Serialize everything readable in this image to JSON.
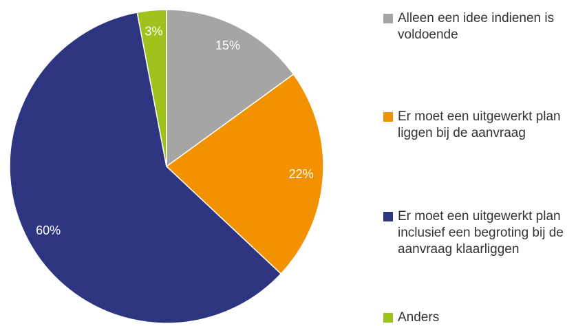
{
  "chart_data": {
    "type": "pie",
    "categories": [
      "Alleen een idee indienen is voldoende",
      "Er moet een uitgewerkt plan liggen bij de aanvraag",
      "Er moet een uitgewerkt plan inclusief een begroting bij de aanvraag klaarliggen",
      "Anders"
    ],
    "values": [
      15,
      22,
      60,
      3
    ],
    "value_labels": [
      "15%",
      "22%",
      "60%",
      "3%"
    ],
    "colors": [
      "#a5a5a5",
      "#f39200",
      "#2e3580",
      "#9fc31d"
    ],
    "legend": "right"
  }
}
